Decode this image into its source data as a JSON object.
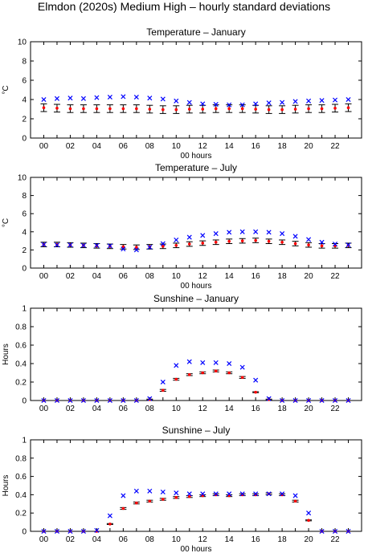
{
  "figure_title": "Elmdon (2020s) Medium High – hourly standard deviations",
  "colors": {
    "baseline": "#0000ff",
    "future": "#ff0000",
    "range": "#000000",
    "axis": "#000000"
  },
  "chart_data": [
    {
      "type": "scatter",
      "title": "Temperature – January",
      "xlabel": "00 hours",
      "ylabel": "°C",
      "x_tick_labels": [
        "00",
        "02",
        "04",
        "06",
        "08",
        "10",
        "12",
        "14",
        "16",
        "18",
        "20",
        "22"
      ],
      "y_tick_labels": [
        "0",
        "2",
        "4",
        "6",
        "8",
        "10"
      ],
      "xlim": [
        -1,
        24
      ],
      "ylim": [
        0,
        10
      ],
      "hours": [
        0,
        1,
        2,
        3,
        4,
        5,
        6,
        7,
        8,
        9,
        10,
        11,
        12,
        13,
        14,
        15,
        16,
        17,
        18,
        19,
        20,
        21,
        22,
        23
      ],
      "series": [
        {
          "marker": "x",
          "values": [
            4.0,
            4.1,
            4.15,
            4.1,
            4.2,
            4.25,
            4.3,
            4.25,
            4.15,
            4.05,
            3.85,
            3.7,
            3.55,
            3.5,
            3.45,
            3.45,
            3.55,
            3.65,
            3.7,
            3.8,
            3.85,
            3.9,
            3.95,
            4.0
          ]
        },
        {
          "marker": "dot",
          "values": [
            3.15,
            3.1,
            3.05,
            3.05,
            3.05,
            3.05,
            3.05,
            3.05,
            3.0,
            2.95,
            2.95,
            3.0,
            3.0,
            3.05,
            3.05,
            3.05,
            3.0,
            2.95,
            2.95,
            3.0,
            3.05,
            3.05,
            3.1,
            3.15
          ]
        },
        {
          "marker": "range",
          "low": [
            2.75,
            2.7,
            2.65,
            2.65,
            2.65,
            2.65,
            2.65,
            2.65,
            2.6,
            2.55,
            2.55,
            2.6,
            2.6,
            2.65,
            2.65,
            2.65,
            2.6,
            2.55,
            2.55,
            2.6,
            2.65,
            2.65,
            2.7,
            2.75
          ],
          "high": [
            3.55,
            3.5,
            3.45,
            3.45,
            3.45,
            3.45,
            3.45,
            3.45,
            3.4,
            3.35,
            3.35,
            3.4,
            3.4,
            3.45,
            3.45,
            3.45,
            3.4,
            3.35,
            3.35,
            3.4,
            3.45,
            3.45,
            3.5,
            3.55
          ]
        }
      ]
    },
    {
      "type": "scatter",
      "title": "Temperature – July",
      "xlabel": "00 hours",
      "ylabel": "°C",
      "x_tick_labels": [
        "00",
        "02",
        "04",
        "06",
        "08",
        "10",
        "12",
        "14",
        "16",
        "18",
        "20",
        "22"
      ],
      "y_tick_labels": [
        "0",
        "2",
        "4",
        "6",
        "8",
        "10"
      ],
      "xlim": [
        -1,
        24
      ],
      "ylim": [
        0,
        10
      ],
      "hours": [
        0,
        1,
        2,
        3,
        4,
        5,
        6,
        7,
        8,
        9,
        10,
        11,
        12,
        13,
        14,
        15,
        16,
        17,
        18,
        19,
        20,
        21,
        22,
        23
      ],
      "series": [
        {
          "marker": "x",
          "values": [
            2.6,
            2.55,
            2.55,
            2.5,
            2.5,
            2.45,
            2.1,
            2.0,
            2.3,
            2.7,
            3.1,
            3.4,
            3.6,
            3.8,
            3.95,
            4.0,
            4.0,
            3.95,
            3.8,
            3.5,
            3.15,
            2.85,
            2.65,
            2.55
          ]
        },
        {
          "marker": "dot",
          "values": [
            2.6,
            2.6,
            2.55,
            2.5,
            2.45,
            2.4,
            2.35,
            2.3,
            2.35,
            2.4,
            2.5,
            2.65,
            2.75,
            2.85,
            2.95,
            3.0,
            3.05,
            2.95,
            2.85,
            2.7,
            2.55,
            2.45,
            2.45,
            2.5
          ]
        },
        {
          "marker": "range",
          "low": [
            2.35,
            2.35,
            2.3,
            2.25,
            2.2,
            2.15,
            2.1,
            2.05,
            2.1,
            2.15,
            2.25,
            2.4,
            2.5,
            2.6,
            2.7,
            2.75,
            2.8,
            2.7,
            2.6,
            2.45,
            2.3,
            2.2,
            2.2,
            2.25
          ],
          "high": [
            2.85,
            2.85,
            2.8,
            2.75,
            2.7,
            2.65,
            2.6,
            2.55,
            2.6,
            2.65,
            2.75,
            2.9,
            3.0,
            3.1,
            3.2,
            3.25,
            3.3,
            3.2,
            3.1,
            2.95,
            2.8,
            2.7,
            2.7,
            2.75
          ]
        }
      ]
    },
    {
      "type": "scatter",
      "title": "Sunshine – January",
      "xlabel": "",
      "ylabel": "Hours",
      "x_tick_labels": [
        "00",
        "02",
        "04",
        "06",
        "08",
        "10",
        "12",
        "14",
        "16",
        "18",
        "20",
        "22"
      ],
      "y_tick_labels": [
        "0",
        "0.2",
        "0.4",
        "0.6",
        "0.8",
        "1"
      ],
      "xlim": [
        -1,
        24
      ],
      "ylim": [
        0,
        1
      ],
      "hours": [
        0,
        1,
        2,
        3,
        4,
        5,
        6,
        7,
        8,
        9,
        10,
        11,
        12,
        13,
        14,
        15,
        16,
        17,
        18,
        19,
        20,
        21,
        22,
        23
      ],
      "series": [
        {
          "marker": "x",
          "values": [
            0,
            0,
            0,
            0,
            0,
            0,
            0,
            0,
            0.02,
            0.2,
            0.38,
            0.42,
            0.41,
            0.41,
            0.4,
            0.36,
            0.22,
            0.02,
            0,
            0,
            0,
            0,
            0,
            0
          ]
        },
        {
          "marker": "dot",
          "values": [
            0,
            0,
            0,
            0,
            0,
            0,
            0,
            0,
            0.01,
            0.11,
            0.23,
            0.28,
            0.3,
            0.32,
            0.3,
            0.25,
            0.09,
            0.01,
            0,
            0,
            0,
            0,
            0,
            0
          ]
        },
        {
          "marker": "range",
          "low": [
            0,
            0,
            0,
            0,
            0,
            0,
            0,
            0,
            0.005,
            0.1,
            0.22,
            0.27,
            0.29,
            0.31,
            0.29,
            0.24,
            0.085,
            0.005,
            0,
            0,
            0,
            0,
            0,
            0
          ],
          "high": [
            0,
            0,
            0,
            0,
            0,
            0,
            0,
            0,
            0.015,
            0.12,
            0.24,
            0.29,
            0.31,
            0.33,
            0.31,
            0.26,
            0.095,
            0.015,
            0,
            0,
            0,
            0,
            0,
            0
          ]
        }
      ]
    },
    {
      "type": "scatter",
      "title": "Sunshine – July",
      "xlabel": "00 hours",
      "ylabel": "Hours",
      "x_tick_labels": [
        "00",
        "02",
        "04",
        "06",
        "08",
        "10",
        "12",
        "14",
        "16",
        "18",
        "20",
        "22"
      ],
      "y_tick_labels": [
        "0",
        "0.2",
        "0.4",
        "0.6",
        "0.8",
        "1"
      ],
      "xlim": [
        -1,
        24
      ],
      "ylim": [
        0,
        1
      ],
      "hours": [
        0,
        1,
        2,
        3,
        4,
        5,
        6,
        7,
        8,
        9,
        10,
        11,
        12,
        13,
        14,
        15,
        16,
        17,
        18,
        19,
        20,
        21,
        22,
        23
      ],
      "series": [
        {
          "marker": "x",
          "values": [
            0,
            0,
            0,
            0,
            0.01,
            0.17,
            0.39,
            0.44,
            0.44,
            0.43,
            0.42,
            0.41,
            0.41,
            0.41,
            0.41,
            0.41,
            0.41,
            0.41,
            0.41,
            0.39,
            0.2,
            0,
            0,
            0
          ]
        },
        {
          "marker": "dot",
          "values": [
            0,
            0,
            0,
            0,
            0,
            0.08,
            0.25,
            0.31,
            0.33,
            0.35,
            0.37,
            0.38,
            0.39,
            0.4,
            0.39,
            0.4,
            0.4,
            0.41,
            0.4,
            0.33,
            0.12,
            0,
            0,
            0
          ]
        },
        {
          "marker": "range",
          "low": [
            0,
            0,
            0,
            0,
            0,
            0.075,
            0.24,
            0.3,
            0.32,
            0.34,
            0.36,
            0.37,
            0.38,
            0.39,
            0.38,
            0.39,
            0.39,
            0.4,
            0.39,
            0.32,
            0.115,
            0,
            0,
            0
          ],
          "high": [
            0,
            0,
            0,
            0,
            0,
            0.085,
            0.26,
            0.32,
            0.34,
            0.36,
            0.38,
            0.39,
            0.4,
            0.41,
            0.4,
            0.41,
            0.41,
            0.42,
            0.41,
            0.34,
            0.125,
            0,
            0,
            0
          ]
        }
      ]
    }
  ]
}
